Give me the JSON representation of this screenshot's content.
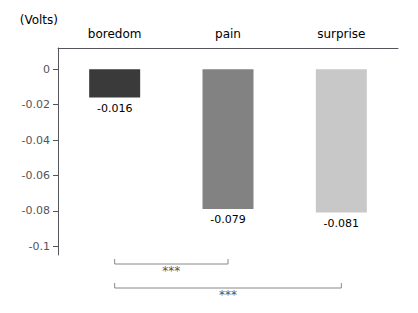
{
  "chart_data": {
    "type": "bar",
    "categories": [
      "boredom",
      "pain",
      "surprise"
    ],
    "values": [
      -0.016,
      -0.079,
      -0.081
    ],
    "colors": [
      "#3a3a3a",
      "#828282",
      "#c8c8c8"
    ],
    "ylabel": "(Volts)",
    "ylim": [
      -0.105,
      0.012
    ],
    "yticks": [
      0,
      -0.02,
      -0.04,
      -0.06,
      -0.08,
      -0.1
    ],
    "data_labels": true,
    "grid": false,
    "annotations": [
      {
        "text": "***",
        "from": "boredom",
        "to": "pain"
      },
      {
        "text": "***",
        "from": "boredom",
        "to": "surprise"
      }
    ]
  }
}
